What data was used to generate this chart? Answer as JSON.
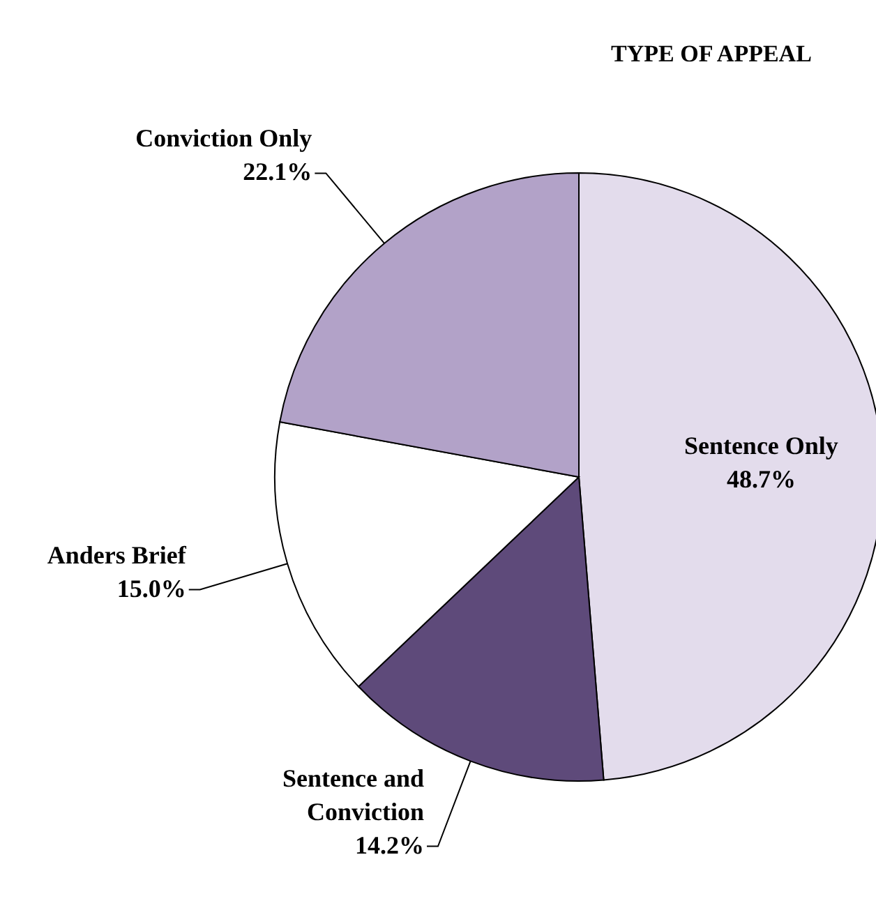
{
  "chart_data": {
    "type": "pie",
    "title": "TYPE OF APPEAL",
    "categories": [
      "Sentence Only",
      "Sentence and Conviction",
      "Anders Brief",
      "Conviction Only"
    ],
    "values": [
      48.7,
      14.2,
      15.0,
      22.1
    ],
    "colors": [
      "#e3dcec",
      "#5e4a7a",
      "#ffffff",
      "#b2a2c8"
    ],
    "value_labels": [
      "48.7%",
      "14.2%",
      "15.0%",
      "22.1%"
    ]
  }
}
